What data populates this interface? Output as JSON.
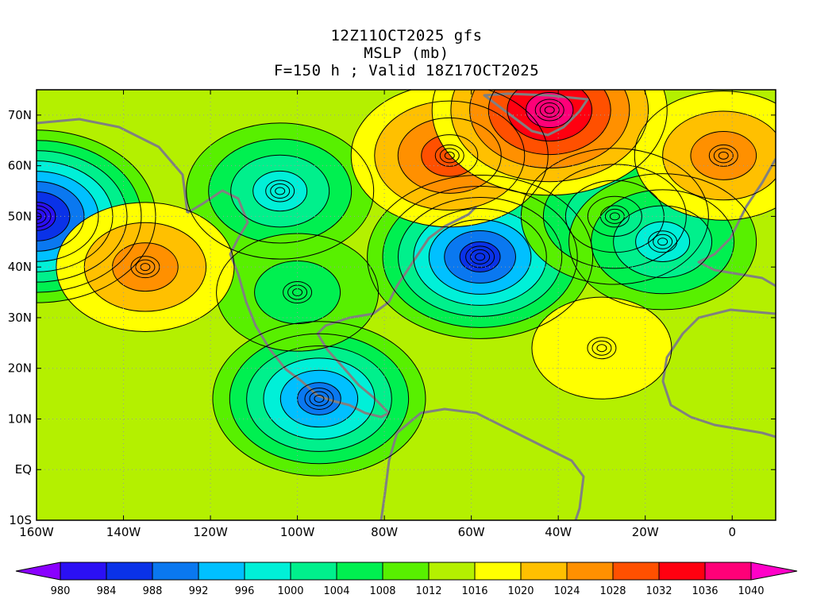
{
  "header": {
    "run": "12Z11OCT2025 gfs",
    "field": "MSLP (mb)",
    "forecast": "F=150 h ; Valid 18Z17OCT2025"
  },
  "map": {
    "lon_range": [
      -160,
      10
    ],
    "lat_range": [
      -10,
      75
    ],
    "lon_ticks": [
      {
        "value": -160,
        "label": "160W"
      },
      {
        "value": -140,
        "label": "140W"
      },
      {
        "value": -120,
        "label": "120W"
      },
      {
        "value": -100,
        "label": "100W"
      },
      {
        "value": -80,
        "label": "80W"
      },
      {
        "value": -60,
        "label": "60W"
      },
      {
        "value": -40,
        "label": "40W"
      },
      {
        "value": -20,
        "label": "20W"
      },
      {
        "value": 0,
        "label": "0"
      }
    ],
    "lat_ticks": [
      {
        "value": -10,
        "label": "10S"
      },
      {
        "value": 0,
        "label": "EQ"
      },
      {
        "value": 10,
        "label": "10N"
      },
      {
        "value": 20,
        "label": "20N"
      },
      {
        "value": 30,
        "label": "30N"
      },
      {
        "value": 40,
        "label": "40N"
      },
      {
        "value": 50,
        "label": "50N"
      },
      {
        "value": 60,
        "label": "60N"
      },
      {
        "value": 70,
        "label": "70N"
      }
    ],
    "pressure_centers": [
      {
        "kind": "low",
        "lon": -160,
        "lat": 50,
        "value": 982
      },
      {
        "kind": "low",
        "lon": -104,
        "lat": 55,
        "value": 997
      },
      {
        "kind": "low",
        "lon": -58,
        "lat": 42,
        "value": 985
      },
      {
        "kind": "low",
        "lon": -27,
        "lat": 50,
        "value": 997
      },
      {
        "kind": "low",
        "lon": -16,
        "lat": 45,
        "value": 998
      },
      {
        "kind": "low",
        "lon": -95,
        "lat": 14,
        "value": 990
      },
      {
        "kind": "low",
        "lon": -100,
        "lat": 35,
        "value": 1005
      },
      {
        "kind": "high",
        "lon": -135,
        "lat": 40,
        "value": 1027
      },
      {
        "kind": "high",
        "lon": -65,
        "lat": 62,
        "value": 1030
      },
      {
        "kind": "high",
        "lon": -42,
        "lat": 71,
        "value": 1037
      },
      {
        "kind": "high",
        "lon": -2,
        "lat": 62,
        "value": 1027
      },
      {
        "kind": "high",
        "lon": -30,
        "lat": 24,
        "value": 1020
      }
    ]
  },
  "colorbar": {
    "levels": [
      "980",
      "984",
      "988",
      "992",
      "996",
      "1000",
      "1004",
      "1008",
      "1012",
      "1016",
      "1020",
      "1024",
      "1028",
      "1032",
      "1036",
      "1040"
    ],
    "colors": [
      "#8a00ff",
      "#2b10f4",
      "#0a32e8",
      "#0a78f0",
      "#00c0ff",
      "#00f0d8",
      "#00f08c",
      "#00f050",
      "#58f000",
      "#b4f000",
      "#ffff00",
      "#ffc000",
      "#ff9000",
      "#ff5000",
      "#ff0010",
      "#ff0078",
      "#ff00c8"
    ]
  }
}
